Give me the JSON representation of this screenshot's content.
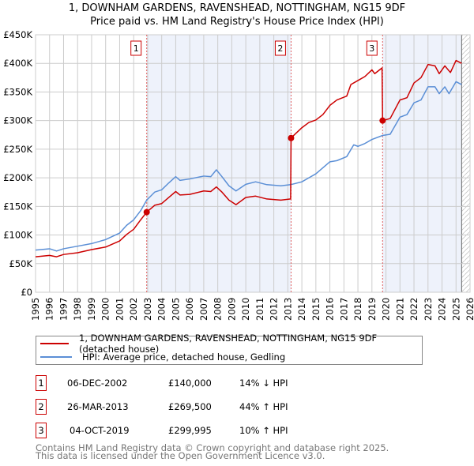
{
  "chart_data": {
    "type": "line",
    "title": "1, DOWNHAM GARDENS, RAVENSHEAD, NOTTINGHAM, NG15 9DF",
    "subtitle": "Price paid vs. HM Land Registry's House Price Index (HPI)",
    "xlim": [
      1995,
      2026
    ],
    "ylim": [
      0,
      450000
    ],
    "y_ticks": [
      0,
      50000,
      100000,
      150000,
      200000,
      250000,
      300000,
      350000,
      400000,
      450000
    ],
    "y_tick_labels": [
      "£0",
      "£50K",
      "£100K",
      "£150K",
      "£200K",
      "£250K",
      "£300K",
      "£350K",
      "£400K",
      "£450K"
    ],
    "x_ticks": [
      "1995",
      "1996",
      "1997",
      "1998",
      "1999",
      "2000",
      "2001",
      "2002",
      "2003",
      "2004",
      "2005",
      "2006",
      "2007",
      "2008",
      "2009",
      "2010",
      "2011",
      "2012",
      "2013",
      "2014",
      "2015",
      "2016",
      "2017",
      "2018",
      "2019",
      "2020",
      "2021",
      "2022",
      "2023",
      "2024",
      "2025",
      "2026"
    ],
    "grid": true,
    "forecast_start": 2025.4,
    "series": [
      {
        "name": "1, DOWNHAM GARDENS, RAVENSHEAD, NOTTINGHAM, NG15 9DF (detached house)",
        "color": "#cc0000",
        "x": [
          1995,
          1996,
          1996.5,
          1997,
          1998,
          1999,
          2000,
          2001,
          2001.5,
          2002,
          2002.5,
          2002.93,
          2003.5,
          2004,
          2004.5,
          2005,
          2005.3,
          2006,
          2007,
          2007.5,
          2007.9,
          2008.3,
          2008.8,
          2009.3,
          2010,
          2010.7,
          2011.5,
          2012.5,
          2013.2,
          2013.23,
          2013.5,
          2014,
          2014.5,
          2015,
          2015.5,
          2016,
          2016.5,
          2017.2,
          2017.5,
          2018,
          2018.5,
          2019,
          2019.2,
          2019.72,
          2019.76,
          2020.3,
          2021,
          2021.5,
          2022,
          2022.5,
          2023,
          2023.5,
          2023.8,
          2024.2,
          2024.6,
          2025,
          2025.4
        ],
        "y": [
          62000,
          64400,
          62000,
          66000,
          69000,
          74500,
          79000,
          89700,
          101000,
          110000,
          126500,
          140000,
          152000,
          155000,
          165600,
          176000,
          170000,
          171000,
          177000,
          176000,
          184000,
          175000,
          161000,
          153000,
          165600,
          168000,
          163000,
          161000,
          163000,
          269500,
          276000,
          287500,
          296700,
          301000,
          310500,
          326600,
          336000,
          342700,
          363000,
          370000,
          377000,
          388700,
          382000,
          392000,
          299995,
          303600,
          336000,
          340000,
          365700,
          375000,
          398000,
          395600,
          382000,
          395600,
          384000,
          405000,
          400000
        ]
      },
      {
        "name": "HPI: Average price, detached house, Gedling",
        "color": "#5b8fd6",
        "x": [
          1995,
          1996,
          1996.5,
          1997,
          1998,
          1999,
          2000,
          2001,
          2001.5,
          2002,
          2002.5,
          2002.93,
          2003.5,
          2004,
          2004.5,
          2005,
          2005.3,
          2006,
          2007,
          2007.5,
          2007.9,
          2008.3,
          2008.8,
          2009.3,
          2010,
          2010.7,
          2011.5,
          2012.5,
          2013.2,
          2014,
          2014.5,
          2015,
          2016,
          2016.5,
          2017.2,
          2017.7,
          2018,
          2018.5,
          2019,
          2019.76,
          2020.3,
          2021,
          2021.5,
          2022,
          2022.5,
          2023,
          2023.5,
          2023.8,
          2024.2,
          2024.5,
          2025,
          2025.4
        ],
        "y": [
          73600,
          76000,
          72000,
          76000,
          80500,
          85000,
          92000,
          103500,
          117000,
          126500,
          142600,
          161000,
          175000,
          179000,
          191000,
          202000,
          195500,
          198000,
          203000,
          202000,
          214000,
          202000,
          186000,
          177000,
          188600,
          193000,
          188000,
          186000,
          188000,
          193000,
          200000,
          207000,
          228000,
          230000,
          237000,
          257600,
          255000,
          260000,
          267000,
          274000,
          276000,
          306000,
          310500,
          331000,
          336000,
          359000,
          359000,
          347000,
          359000,
          347000,
          368000,
          363000
        ]
      }
    ],
    "sales": [
      {
        "num": "1",
        "date": "06-DEC-2002",
        "price": "£140,000",
        "hpi": "14% ↓ HPI",
        "x": 2002.93,
        "y": 140000
      },
      {
        "num": "2",
        "date": "26-MAR-2013",
        "price": "£269,500",
        "hpi": "44% ↑ HPI",
        "x": 2013.23,
        "y": 269500
      },
      {
        "num": "3",
        "date": "04-OCT-2019",
        "price": "£299,995",
        "hpi": "10% ↑ HPI",
        "x": 2019.76,
        "y": 299995
      }
    ]
  },
  "footer": {
    "line1": "Contains HM Land Registry data © Crown copyright and database right 2025.",
    "line2": "This data is licensed under the Open Government Licence v3.0."
  }
}
